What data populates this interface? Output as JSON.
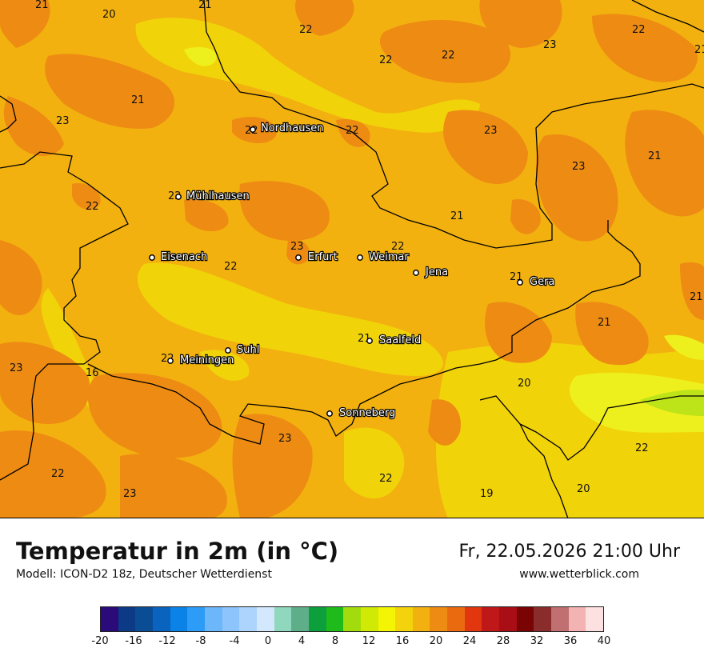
{
  "title": "Temperatur in 2m (in °C)",
  "model": "Modell: ICON-D2 18z, Deutscher Wetterdienst",
  "valid_time": "Fr, 22.05.2026 21:00 Uhr",
  "website": "www.wetterblick.com",
  "colors": {
    "base": "#f2b10f",
    "warm": "#ee8b13",
    "cool": "#f1d30a",
    "cooler": "#eef01d",
    "green": "#bde319",
    "border": "#000000"
  },
  "cities": [
    {
      "name": "Nordhausen"
    },
    {
      "name": "Mühlhausen"
    },
    {
      "name": "Eisenach"
    },
    {
      "name": "Erfurt"
    },
    {
      "name": "Weimar"
    },
    {
      "name": "Jena"
    },
    {
      "name": "Gera"
    },
    {
      "name": "Saalfeld"
    },
    {
      "name": "Suhl"
    },
    {
      "name": "Meiningen"
    },
    {
      "name": "Sonneberg"
    }
  ],
  "temperature_labels": [
    "21",
    "20",
    "21",
    "22",
    "22",
    "22",
    "23",
    "22",
    "21",
    "21",
    "23",
    "22",
    "22",
    "23",
    "23",
    "21",
    "22",
    "22",
    "23",
    "22",
    "22",
    "21",
    "21",
    "21",
    "21",
    "23",
    "16",
    "22",
    "21",
    "20",
    "23",
    "22",
    "22",
    "23",
    "19",
    "20",
    "22"
  ],
  "legend": {
    "colors": [
      "#2b0a7a",
      "#0d3a86",
      "#0a4d95",
      "#0a64bf",
      "#0a82e6",
      "#2d9cf7",
      "#6cb6fa",
      "#8cc4fb",
      "#acd4fc",
      "#d4e8fd",
      "#8fd8bd",
      "#5fae8a",
      "#0d9f3c",
      "#1fbb1a",
      "#a2dc0c",
      "#d0e905",
      "#f3f504",
      "#f2d30c",
      "#f2b10f",
      "#ee8b13",
      "#ea6a10",
      "#e2360f",
      "#c01818",
      "#a90d15",
      "#7a0303",
      "#8b2c2c",
      "#c07070",
      "#f3b3b3",
      "#fde0e0"
    ],
    "ticks": [
      "-20",
      "-16",
      "-12",
      "-8",
      "-4",
      "0",
      "4",
      "8",
      "12",
      "16",
      "20",
      "24",
      "28",
      "32",
      "36",
      "40"
    ]
  }
}
